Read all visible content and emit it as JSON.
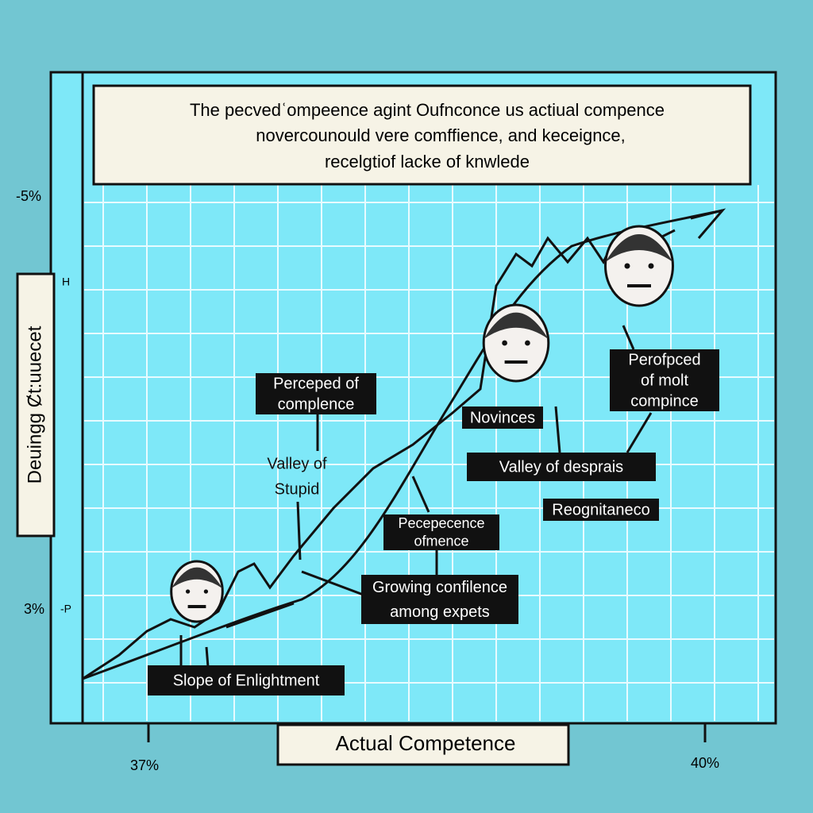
{
  "header": {
    "title_lines": [
      "The pecvedʿompeence   agint Oufnconce us actiual compence",
      "novercounould vere comffience, and keceignce,",
      "recelgtiof lacke of knwlede"
    ]
  },
  "axes": {
    "y_label": "Deuingg Ȼt:uuecet",
    "y_ticks": [
      "-5%",
      "H",
      "3%",
      "-P"
    ],
    "x_label": "Actual Competence",
    "x_ticks": [
      "37%",
      "40%"
    ]
  },
  "callouts": [
    {
      "lines": [
        "Perceped of",
        "complence"
      ]
    },
    {
      "lines": [
        "Valley of",
        "Stupid"
      ]
    },
    {
      "lines": [
        "Pecepecence",
        "ofmence"
      ]
    },
    {
      "lines": [
        "Growing confilence",
        "among expets"
      ]
    },
    {
      "lines": [
        "Slope of Enlightment"
      ]
    },
    {
      "lines": [
        "Novinces"
      ]
    },
    {
      "lines": [
        "Perofpced",
        "of molt",
        "compince"
      ]
    },
    {
      "lines": [
        "Valley of desprais"
      ]
    },
    {
      "lines": [
        "Reognitaneco"
      ]
    }
  ]
}
